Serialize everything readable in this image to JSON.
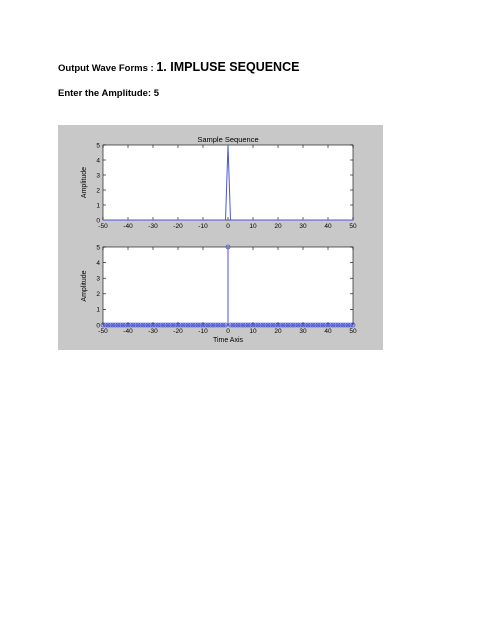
{
  "document": {
    "heading_prefix": "Output Wave Forms : ",
    "heading_main": "1. IMPLUSE SEQUENCE",
    "amplitude_line": "Enter the Amplitude: 5"
  },
  "colors": {
    "figure_bg": "#c8c8c8",
    "axes_bg": "#ffffff",
    "series": "#4a55d6"
  },
  "chart_data": [
    {
      "type": "line",
      "title": "Sample Sequence",
      "xlabel": "",
      "ylabel": "Amplitude",
      "xlim": [
        -50,
        50
      ],
      "ylim": [
        0,
        5
      ],
      "xticks": [
        "-50",
        "-40",
        "-30",
        "-20",
        "-10",
        "0",
        "10",
        "20",
        "30",
        "40",
        "50"
      ],
      "yticks": [
        "0",
        "1",
        "2",
        "3",
        "4",
        "5"
      ],
      "grid": false,
      "series": [
        {
          "x": [
            -50,
            -1,
            0,
            1,
            50
          ],
          "y": [
            0,
            0,
            5,
            0,
            0
          ]
        }
      ]
    },
    {
      "type": "stem",
      "title": "",
      "xlabel": "Time Axis",
      "ylabel": "Amplitude",
      "xlim": [
        -50,
        50
      ],
      "ylim": [
        0,
        5
      ],
      "xticks": [
        "-50",
        "-40",
        "-30",
        "-20",
        "-10",
        "0",
        "10",
        "20",
        "30",
        "40",
        "50"
      ],
      "yticks": [
        "0",
        "1",
        "2",
        "3",
        "4",
        "5"
      ],
      "grid": false,
      "series": [
        {
          "x_range": [
            -50,
            50
          ],
          "x_step": 1,
          "impulse_at": 0,
          "impulse_value": 5,
          "other_value": 0
        }
      ]
    }
  ]
}
